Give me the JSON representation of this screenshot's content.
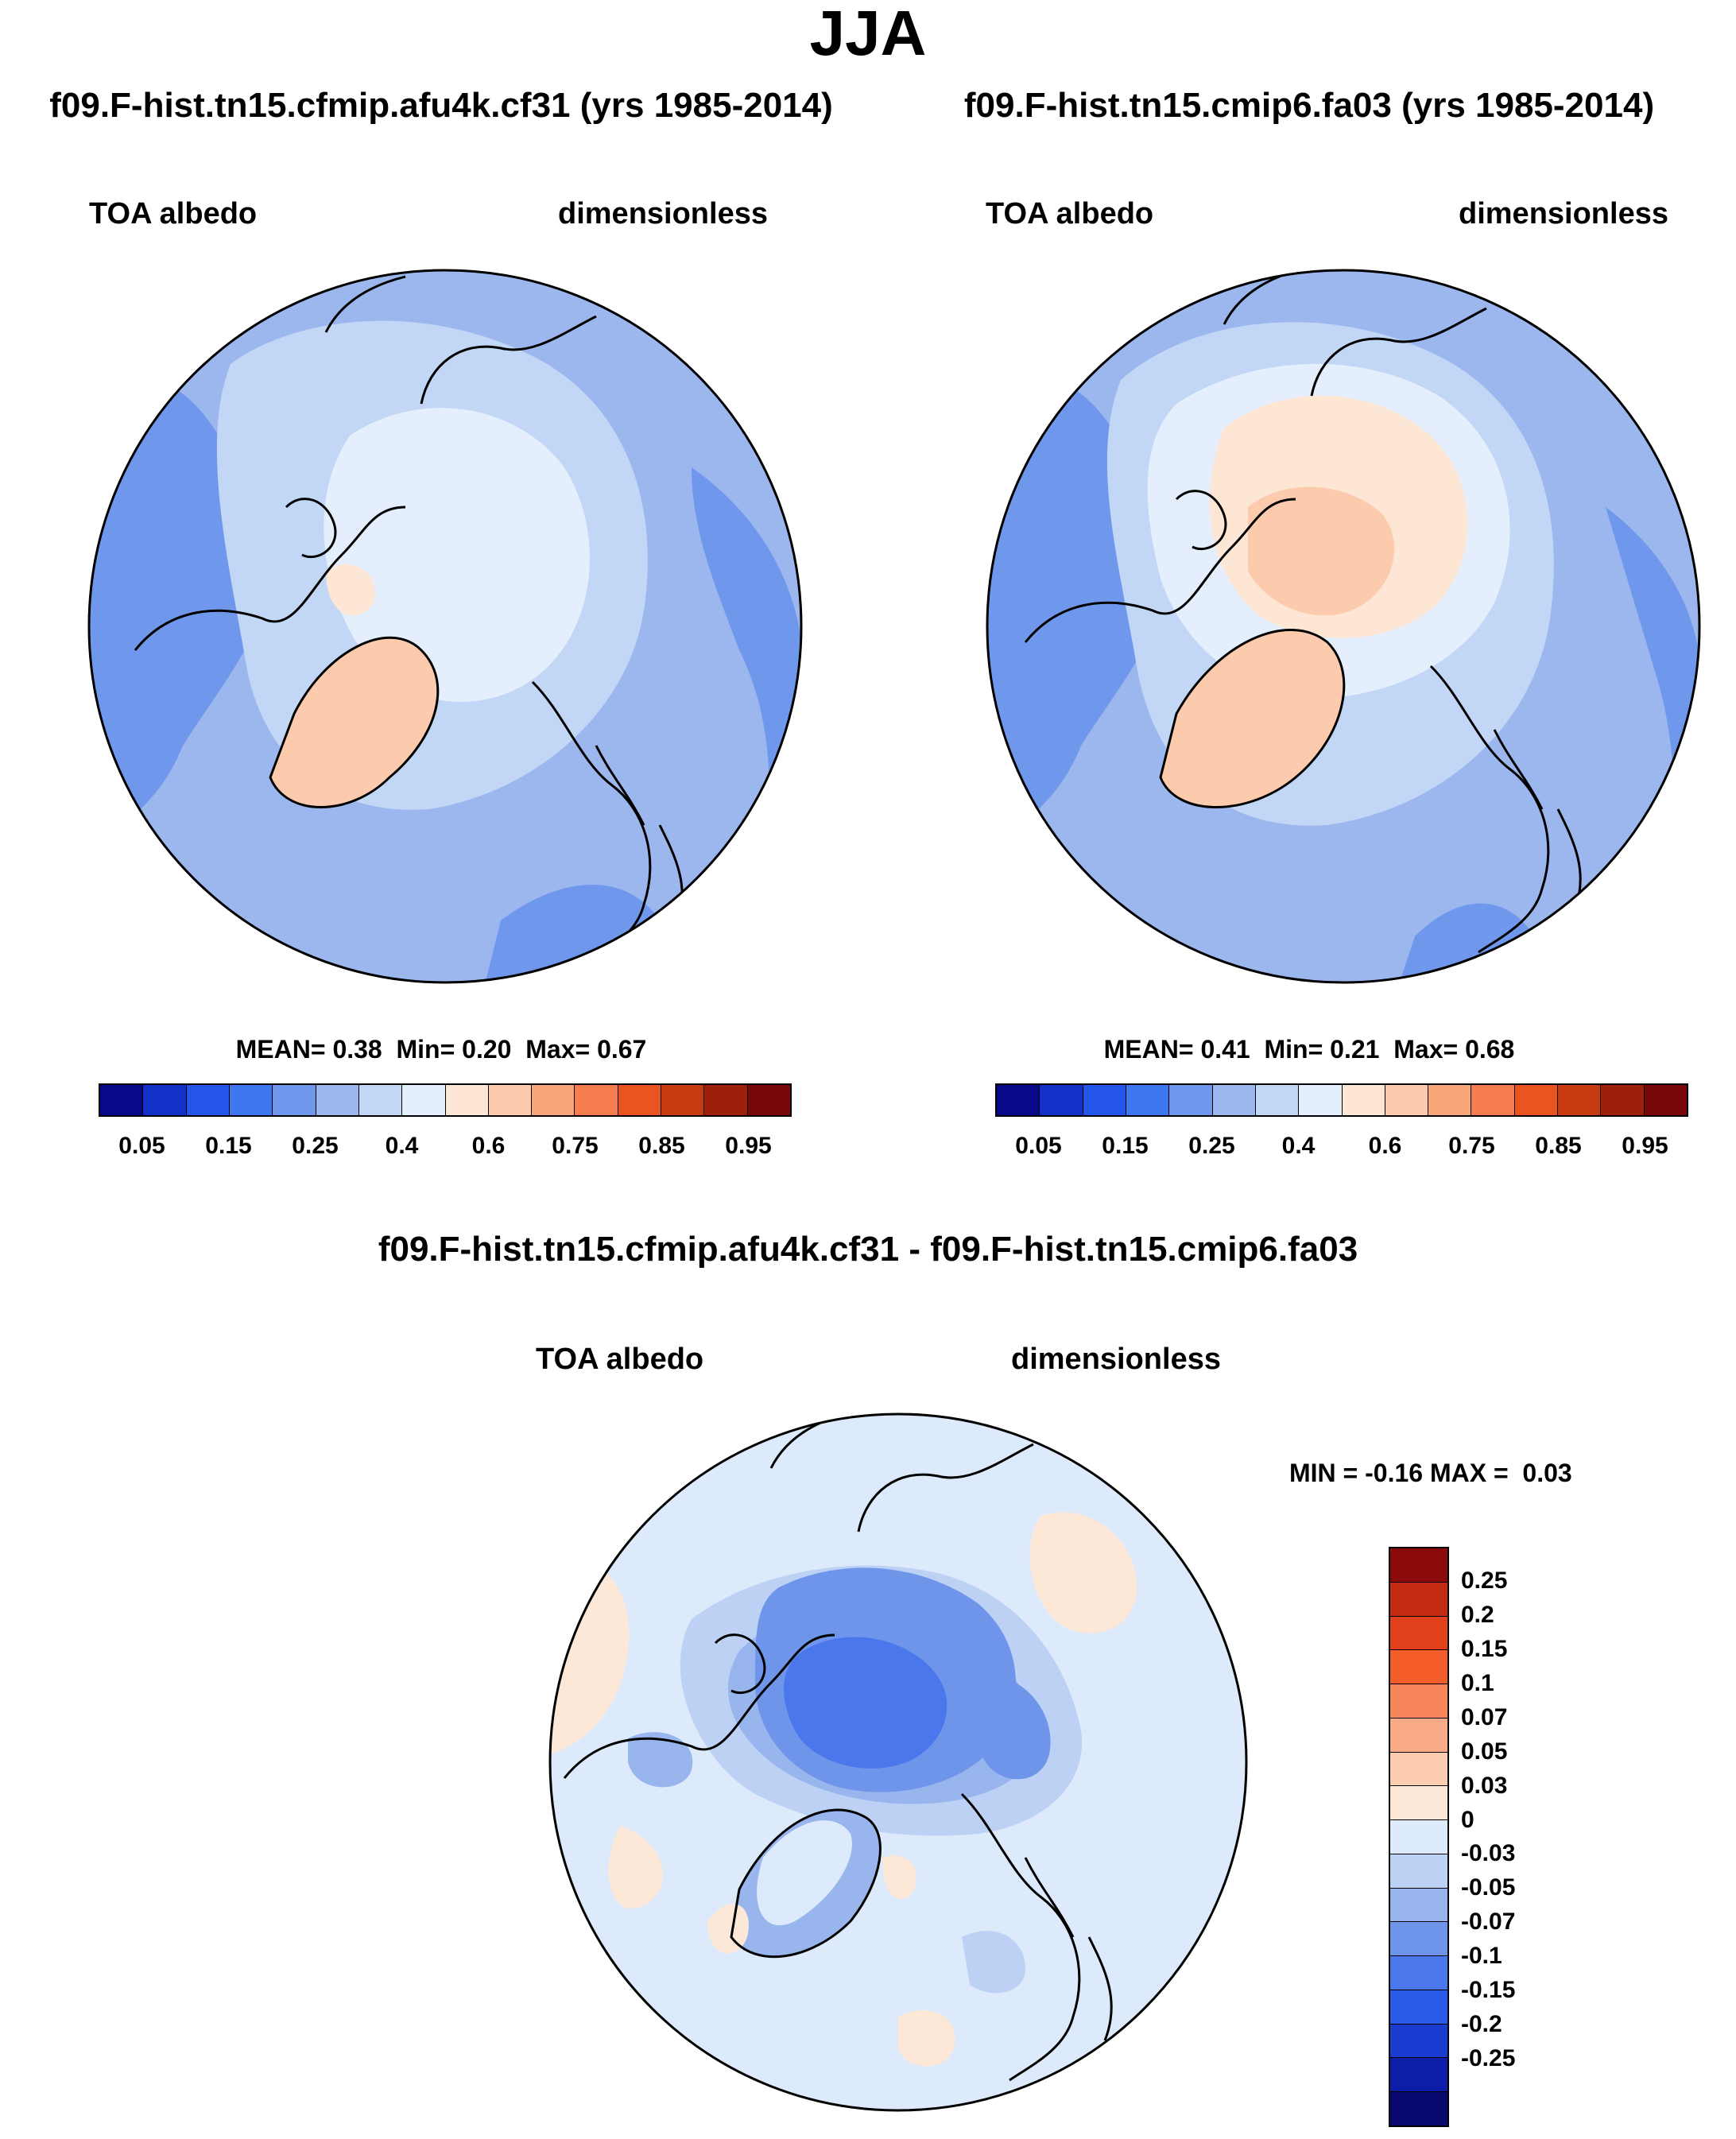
{
  "page": {
    "title": "JJA"
  },
  "panels": [
    {
      "id": "a",
      "case": "f09.F-hist.tn15.cfmip.afu4k.cf31 (yrs 1985-2014)",
      "variable": "TOA albedo",
      "units": "dimensionless",
      "stats": {
        "mean": "0.38",
        "min": "0.20",
        "max": "0.67"
      }
    },
    {
      "id": "b",
      "case": "f09.F-hist.tn15.cmip6.fa03 (yrs 1985-2014)",
      "variable": "TOA albedo",
      "units": "dimensionless",
      "stats": {
        "mean": "0.41",
        "min": "0.21",
        "max": "0.68"
      }
    }
  ],
  "diff_panel": {
    "case": "f09.F-hist.tn15.cfmip.afu4k.cf31 - f09.F-hist.tn15.cmip6.fa03",
    "variable": "TOA albedo",
    "units": "dimensionless",
    "stats": {
      "min": "-0.16",
      "max": "0.03"
    }
  },
  "labels": {
    "mean": "MEAN=",
    "min": "Min=",
    "max": "Max=",
    "diff_min": "MIN =",
    "diff_max": "MAX ="
  },
  "colorbar_main": {
    "colors": [
      "#08088a",
      "#1432c8",
      "#2255e8",
      "#3e78f0",
      "#6f98ec",
      "#9cb6ee",
      "#c2d6f6",
      "#e4eefc",
      "#fde6d4",
      "#fccbad",
      "#f9a67a",
      "#f57d50",
      "#ea5420",
      "#c83a10",
      "#9e200a",
      "#780808"
    ],
    "tick_labels": [
      "0.05",
      "0.15",
      "0.25",
      "0.4",
      "0.6",
      "0.75",
      "0.85",
      "0.95"
    ]
  },
  "colorbar_diff": {
    "colors_top_to_bottom": [
      "#8b0a0a",
      "#c22a12",
      "#e2401a",
      "#f45c2a",
      "#f7875a",
      "#f9aa86",
      "#fcccb0",
      "#fde8d8",
      "#ddeafb",
      "#bcd1f4",
      "#98b5ee",
      "#6e95ea",
      "#4a78ec",
      "#2a5ae8",
      "#1a3cd0",
      "#0c1ea8",
      "#08086e"
    ],
    "tick_labels": [
      "0.25",
      "0.2",
      "0.15",
      "0.1",
      "0.07",
      "0.05",
      "0.03",
      "0",
      "-0.03",
      "-0.05",
      "-0.07",
      "-0.1",
      "-0.15",
      "-0.2",
      "-0.25"
    ]
  }
}
